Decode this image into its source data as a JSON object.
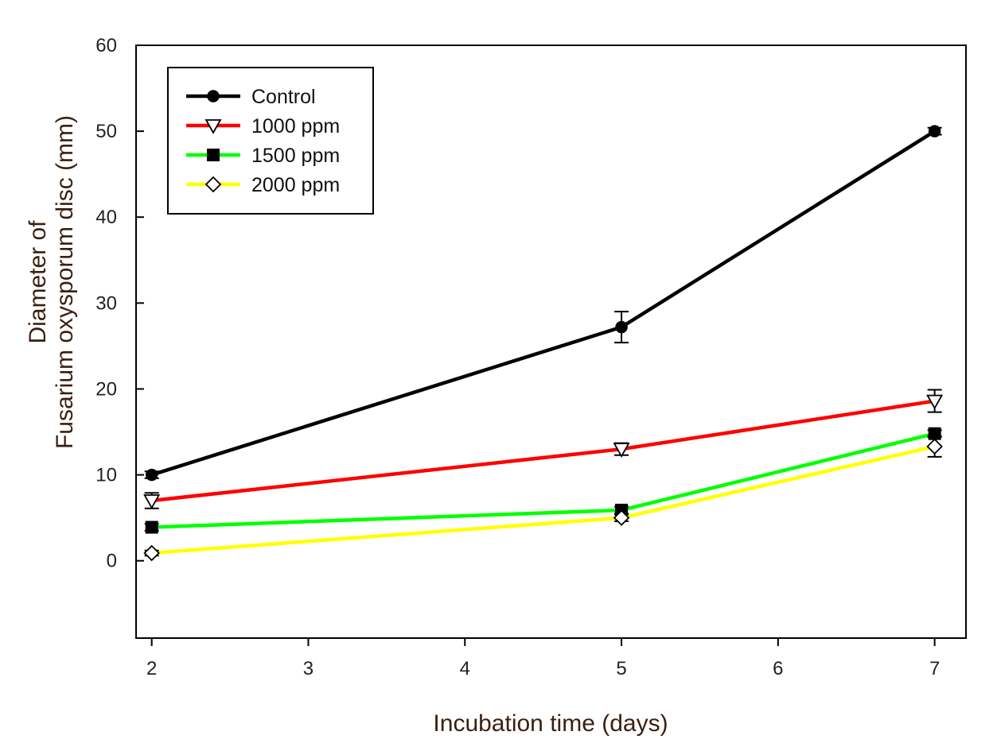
{
  "chart_data": {
    "type": "line",
    "title": "",
    "xlabel": "Incubation time (days)",
    "ylabel_lines": [
      "Diameter of",
      "Fusarium oxysporum disc (mm)"
    ],
    "xlim": [
      1.9,
      7.2
    ],
    "ylim": [
      -9,
      60
    ],
    "x_ticks": [
      2,
      3,
      4,
      5,
      6,
      7
    ],
    "y_ticks": [
      0,
      10,
      20,
      30,
      40,
      50,
      60
    ],
    "legend_position": "top-left",
    "grid": false,
    "series": [
      {
        "name": "Control",
        "color": "#000000",
        "marker": "circle-filled",
        "x": [
          2,
          5,
          7
        ],
        "y": [
          10,
          27.2,
          50
        ],
        "err": [
          0.4,
          1.8,
          0.4
        ]
      },
      {
        "name": "1000 ppm",
        "color": "#ff0000",
        "marker": "triangle-down-open",
        "x": [
          2,
          5,
          7
        ],
        "y": [
          7,
          13,
          18.6
        ],
        "err": [
          0.9,
          0.7,
          1.3
        ]
      },
      {
        "name": "1500 ppm",
        "color": "#00ff00",
        "marker": "square-filled",
        "x": [
          2,
          5,
          7
        ],
        "y": [
          3.9,
          5.9,
          14.8
        ],
        "err": [
          0.4,
          0.4,
          0.4
        ]
      },
      {
        "name": "2000 ppm",
        "color": "#ffff00",
        "marker": "diamond-open",
        "x": [
          2,
          5,
          7
        ],
        "y": [
          0.9,
          5,
          13.3
        ],
        "err": [
          0.3,
          0.4,
          1.2
        ]
      }
    ]
  }
}
